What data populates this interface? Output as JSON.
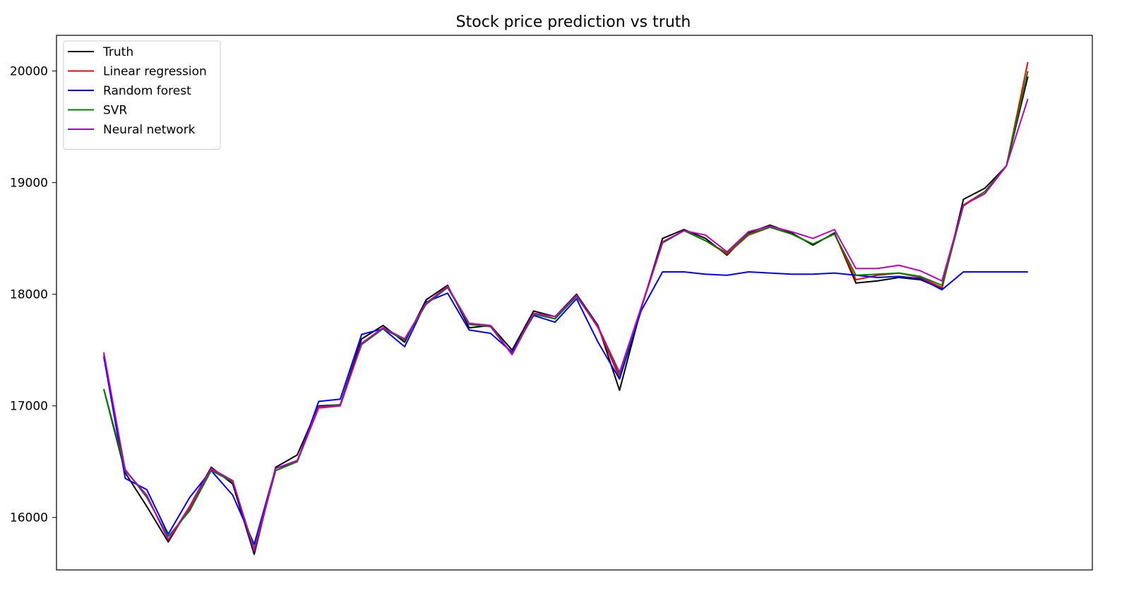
{
  "chart_data": {
    "type": "line",
    "title": "Stock price prediction vs truth",
    "xlabel": "",
    "ylabel": "",
    "x_range": [
      -22,
      460
    ],
    "ylim": [
      15530,
      20320
    ],
    "yticks": [
      16000,
      17000,
      18000,
      19000,
      20000
    ],
    "xticks_shown": false,
    "grid": false,
    "legend_position": "top-left",
    "x": [
      0,
      10,
      20,
      30,
      40,
      50,
      60,
      70,
      80,
      90,
      100,
      110,
      120,
      130,
      140,
      150,
      160,
      170,
      180,
      190,
      200,
      210,
      220,
      230,
      240,
      250,
      260,
      270,
      280,
      290,
      300,
      310,
      320,
      330,
      340,
      350,
      360,
      370,
      380,
      390,
      400,
      410,
      420,
      430
    ],
    "series": [
      {
        "name": "Truth",
        "color": "#000000",
        "values": [
          17150,
          16400,
          16100,
          15780,
          16100,
          16450,
          16300,
          15670,
          16450,
          16560,
          17000,
          17010,
          17600,
          17720,
          17570,
          17950,
          18080,
          17700,
          17720,
          17500,
          17850,
          17800,
          18000,
          17720,
          17140,
          17870,
          18500,
          18580,
          18500,
          18350,
          18550,
          18620,
          18550,
          18440,
          18550,
          18100,
          18120,
          18150,
          18130,
          18050,
          18850,
          18950,
          19150,
          19950
        ]
      },
      {
        "name": "Linear regression",
        "color": "#ff0000",
        "values": [
          17460,
          16420,
          16200,
          15800,
          16080,
          16430,
          16330,
          15700,
          16420,
          16500,
          16980,
          17000,
          17560,
          17700,
          17590,
          17920,
          18070,
          17730,
          17710,
          17460,
          17830,
          17780,
          17990,
          17700,
          17250,
          17870,
          18460,
          18570,
          18480,
          18360,
          18530,
          18600,
          18540,
          18450,
          18540,
          18130,
          18170,
          18190,
          18150,
          18060,
          18800,
          18920,
          19150,
          20080
        ]
      },
      {
        "name": "Random forest",
        "color": "#0000ff",
        "values": [
          17440,
          16350,
          16250,
          15850,
          16180,
          16420,
          16200,
          15760,
          16440,
          16500,
          17040,
          17060,
          17640,
          17690,
          17530,
          17930,
          18010,
          17680,
          17650,
          17480,
          17810,
          17750,
          17960,
          17570,
          17240,
          17850,
          18200,
          18200,
          18180,
          18170,
          18200,
          18190,
          18180,
          18180,
          18190,
          18170,
          18150,
          18160,
          18140,
          18040,
          18200,
          18200,
          18200,
          18200
        ]
      },
      {
        "name": "SVR",
        "color": "#008000",
        "values": [
          17150,
          16430,
          16180,
          15830,
          16060,
          16420,
          16320,
          15720,
          16420,
          16500,
          16990,
          17010,
          17550,
          17690,
          17590,
          17910,
          18060,
          17730,
          17710,
          17460,
          17820,
          17780,
          17980,
          17710,
          17280,
          17880,
          18460,
          18570,
          18480,
          18370,
          18540,
          18600,
          18540,
          18450,
          18540,
          18170,
          18180,
          18190,
          18160,
          18080,
          18790,
          18920,
          19150,
          20000
        ]
      },
      {
        "name": "Neural network",
        "color": "#c000c0",
        "values": [
          17480,
          16420,
          16200,
          15800,
          16100,
          16440,
          16330,
          15700,
          16440,
          16510,
          16990,
          17000,
          17560,
          17700,
          17600,
          17920,
          18070,
          17740,
          17720,
          17460,
          17830,
          17800,
          17990,
          17710,
          17300,
          17880,
          18470,
          18570,
          18530,
          18380,
          18560,
          18610,
          18560,
          18500,
          18580,
          18230,
          18230,
          18260,
          18210,
          18120,
          18800,
          18900,
          19150,
          19750
        ]
      }
    ]
  }
}
